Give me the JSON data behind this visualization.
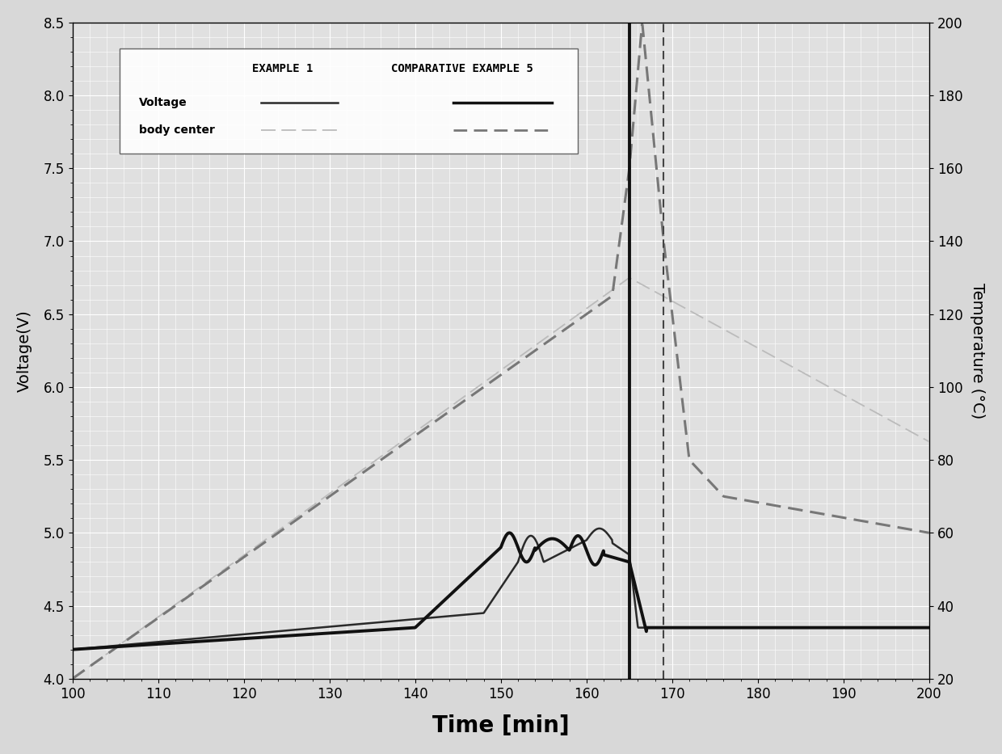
{
  "title": "",
  "xlabel": "Time [min]",
  "ylabel_left": "Voltage(V)",
  "ylabel_right": "Temperature (°C)",
  "xlim": [
    100,
    200
  ],
  "ylim_left": [
    4.0,
    8.5
  ],
  "ylim_right": [
    20,
    200
  ],
  "legend_col1": "EXAMPLE 1",
  "legend_col2": "COMPARATIVE EXAMPLE 5",
  "legend_row1": "Voltage",
  "legend_row2": "body center",
  "bg_color": "#e0e0e0",
  "grid_color": "#ffffff",
  "voltage_ex1_color": "#2a2a2a",
  "voltage_ex5_color": "#111111",
  "temp_ex1_color": "#bbbbbb",
  "temp_ex5_color": "#777777",
  "vertical_line_x1": 165,
  "vertical_line_x2": 169
}
